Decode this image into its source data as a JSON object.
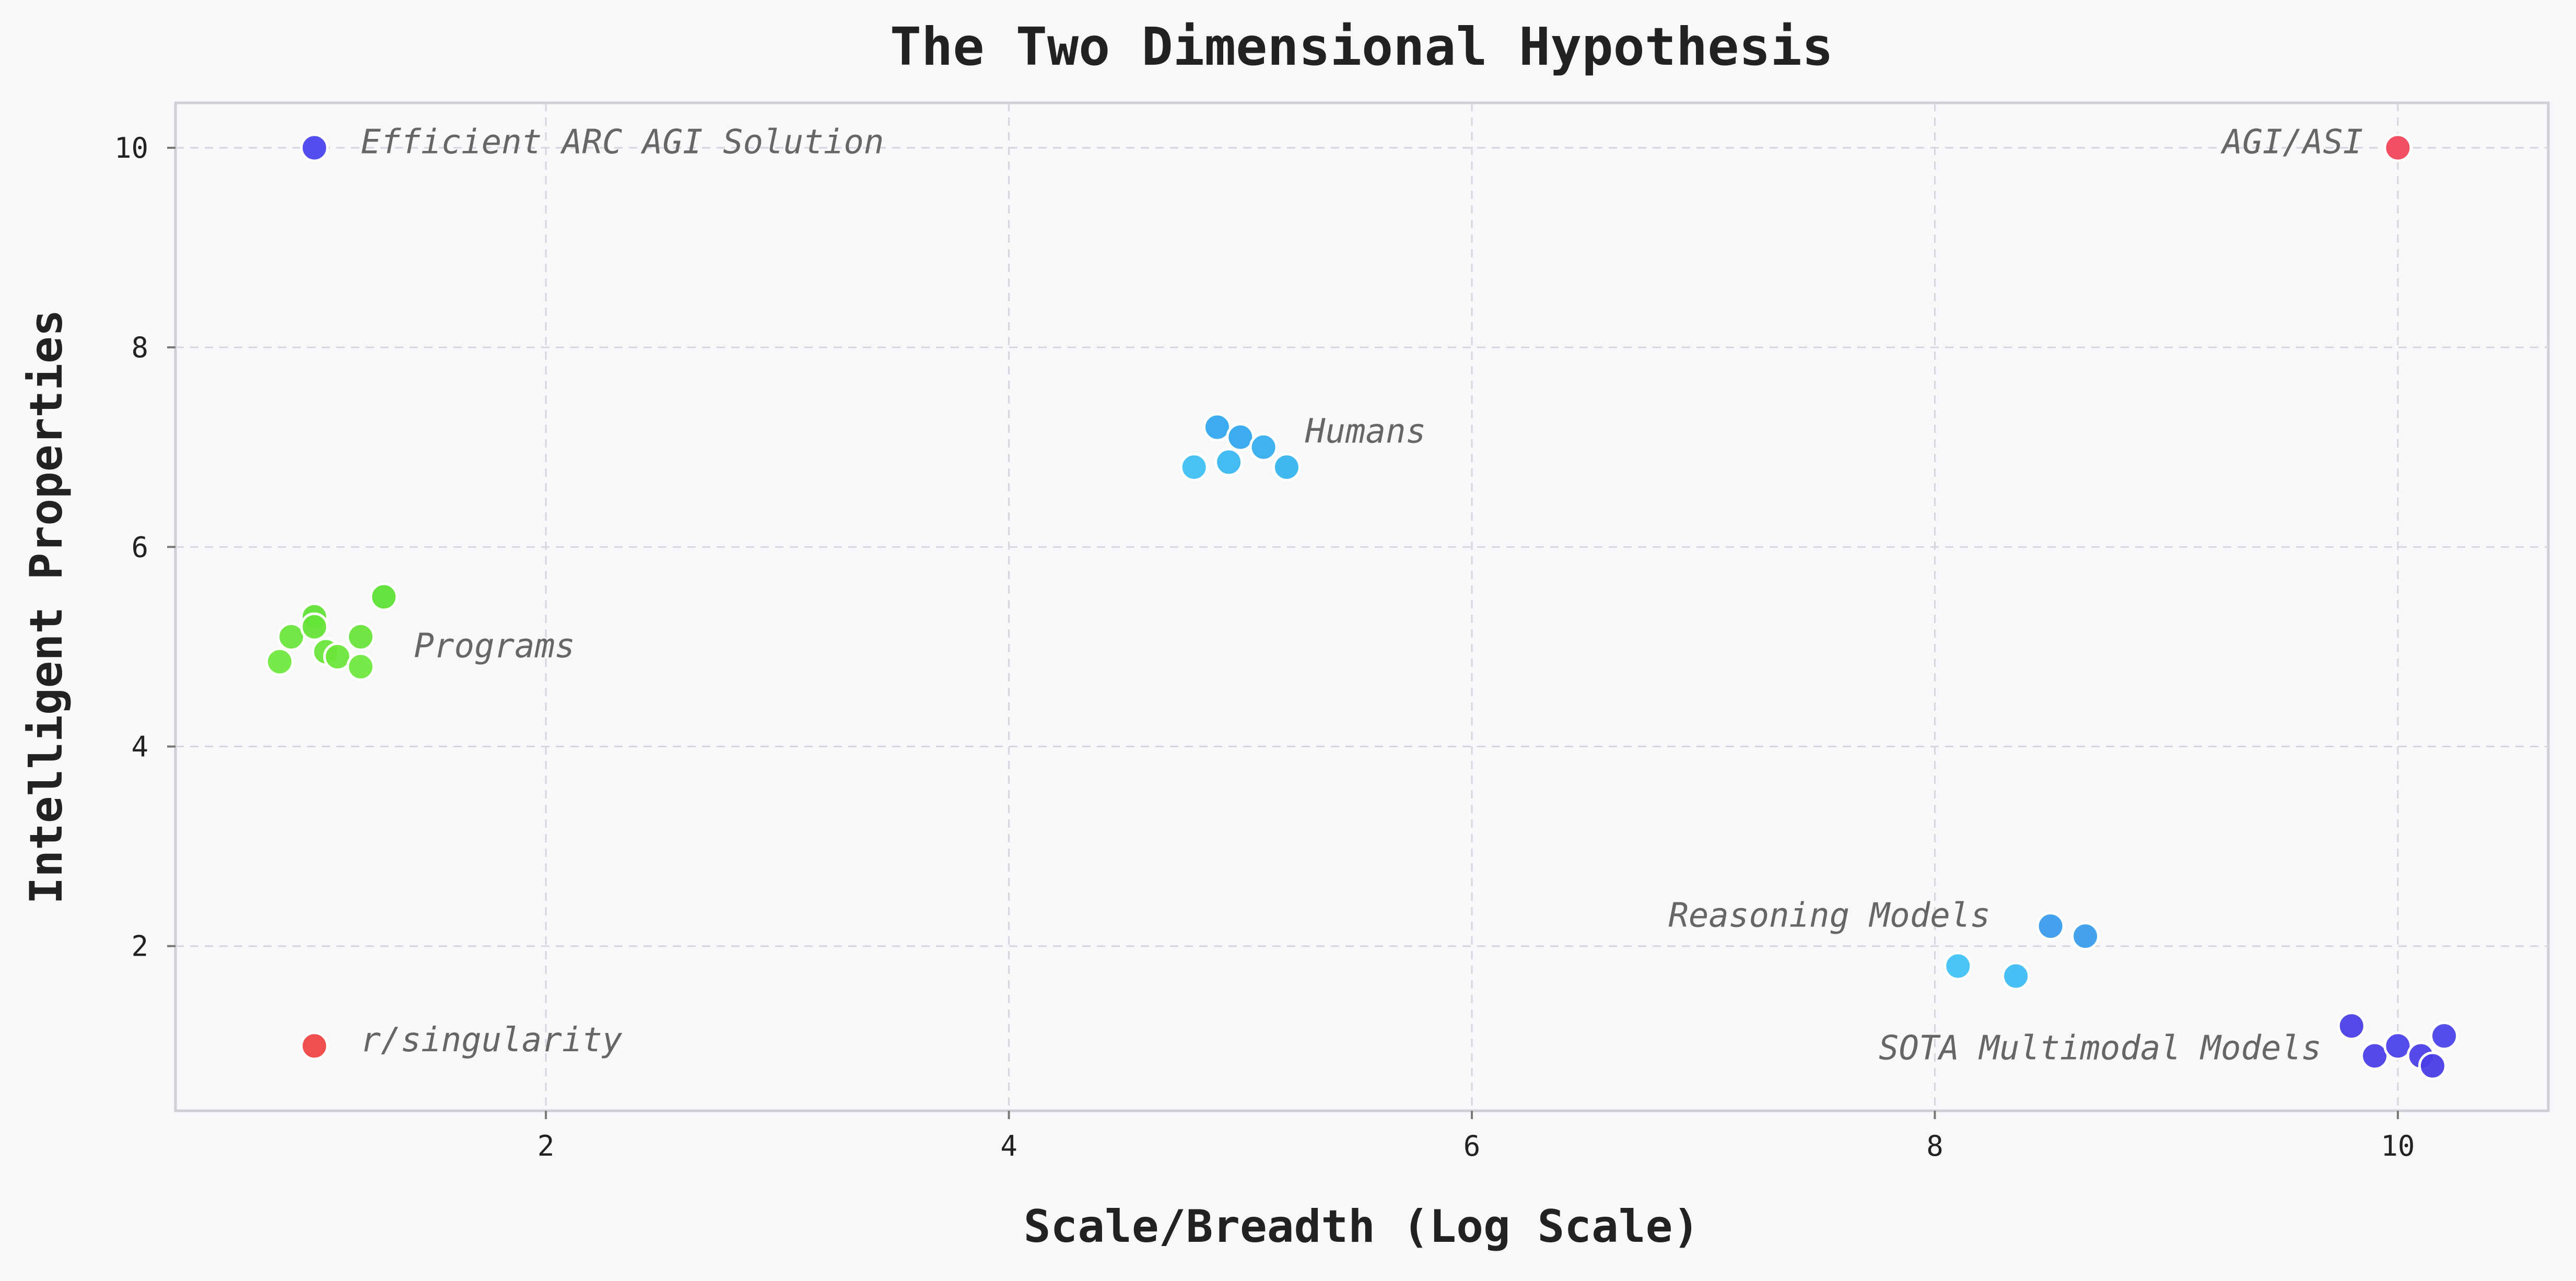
{
  "chart_data": {
    "type": "scatter",
    "title": "The Two Dimensional Hypothesis",
    "xlabel": "Scale/Breadth (Log Scale)",
    "ylabel": "Intelligent Properties",
    "xlim": [
      0.4,
      10.65
    ],
    "ylim": [
      0.35,
      10.45
    ],
    "xticks": [
      2,
      4,
      6,
      8,
      10
    ],
    "yticks": [
      2,
      4,
      6,
      8,
      10
    ],
    "grid": true,
    "groups": [
      {
        "label": "Efficient ARC AGI Solution",
        "label_anchor": "start",
        "label_at": [
          1.2,
          10.05
        ],
        "color": "#4a44ee",
        "points": [
          [
            1.0,
            10.0
          ]
        ]
      },
      {
        "label": "AGI/ASI",
        "label_anchor": "end",
        "label_at": [
          9.85,
          10.05
        ],
        "color": "#f24558",
        "points": [
          [
            10.0,
            10.0
          ]
        ]
      },
      {
        "label": "Humans",
        "label_anchor": "start",
        "label_at": [
          5.28,
          7.15
        ],
        "color": "#33a8ec",
        "points": [
          [
            4.8,
            6.8
          ],
          [
            4.9,
            7.2
          ],
          [
            4.95,
            6.85
          ],
          [
            5.0,
            7.1
          ],
          [
            5.1,
            7.0
          ],
          [
            5.2,
            6.8
          ]
        ],
        "colors": [
          "#3fc0f2",
          "#33a6ee",
          "#3ab8f0",
          "#33a8ee",
          "#36aeee",
          "#38b4f0"
        ]
      },
      {
        "label": "Programs",
        "label_anchor": "start",
        "label_at": [
          1.43,
          5.0
        ],
        "color": "#6ae53a",
        "points": [
          [
            0.85,
            4.85
          ],
          [
            0.9,
            5.1
          ],
          [
            1.0,
            5.3
          ],
          [
            1.0,
            5.2
          ],
          [
            1.05,
            4.95
          ],
          [
            1.1,
            4.9
          ],
          [
            1.2,
            5.1
          ],
          [
            1.2,
            4.8
          ],
          [
            1.3,
            5.5
          ]
        ],
        "colors": [
          "#70e83e",
          "#6ae53a",
          "#62e236",
          "#66e338",
          "#6ae53a",
          "#6de63c",
          "#68e43a",
          "#70e83e",
          "#5ee034"
        ]
      },
      {
        "label": "Reasoning Models",
        "label_anchor": "end",
        "label_at": [
          8.24,
          2.3
        ],
        "color": "#3aa4ee",
        "points": [
          [
            8.1,
            1.8
          ],
          [
            8.35,
            1.7
          ],
          [
            8.5,
            2.2
          ],
          [
            8.65,
            2.1
          ]
        ],
        "colors": [
          "#40c2f6",
          "#3dbcf4",
          "#3a9cec",
          "#3b9eec"
        ]
      },
      {
        "label": "SOTA Multimodal Models",
        "label_anchor": "end",
        "label_at": [
          9.67,
          0.97
        ],
        "color": "#4a40e8",
        "points": [
          [
            9.8,
            1.2
          ],
          [
            9.9,
            0.9
          ],
          [
            10.0,
            1.0
          ],
          [
            10.1,
            0.9
          ],
          [
            10.15,
            0.8
          ],
          [
            10.2,
            1.1
          ]
        ],
        "colors": [
          "#4a3fe6",
          "#4a40e8",
          "#4b42ea",
          "#4a40e8",
          "#4a3de6",
          "#4b44ea"
        ]
      },
      {
        "label": "r/singularity",
        "label_anchor": "start",
        "label_at": [
          1.2,
          1.05
        ],
        "color": "#f04444",
        "points": [
          [
            1.0,
            1.0
          ]
        ]
      }
    ]
  }
}
